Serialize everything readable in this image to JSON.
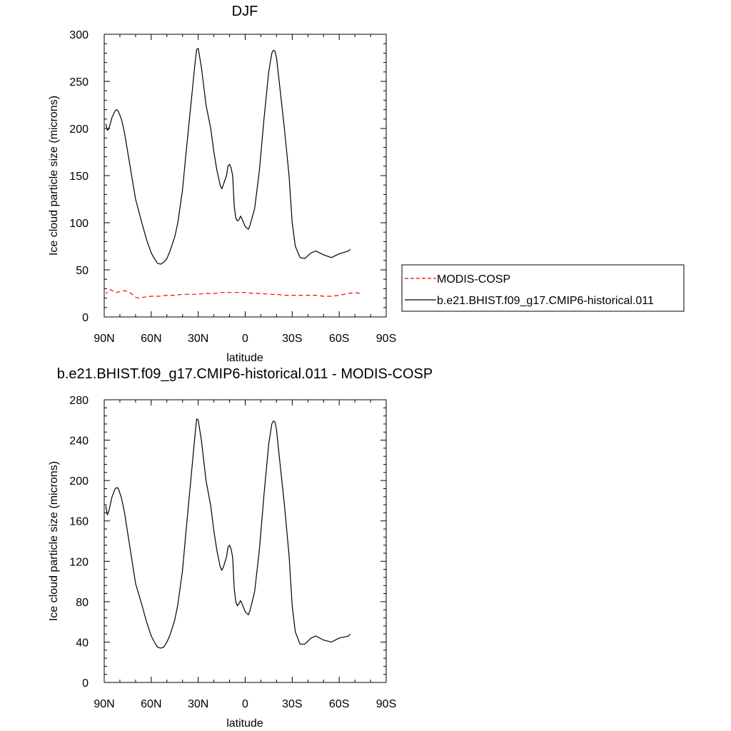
{
  "chart_data": [
    {
      "type": "line",
      "title": "DJF",
      "xlabel": "latitude",
      "ylabel": "Ice cloud particle size (microns)",
      "xlim": [
        90,
        -90
      ],
      "ylim": [
        0,
        300
      ],
      "x_ticks": [
        90,
        60,
        30,
        0,
        -30,
        -60,
        -90
      ],
      "x_tick_labels": [
        "90N",
        "60N",
        "30N",
        "0",
        "30S",
        "60S",
        "90S"
      ],
      "y_ticks": [
        0,
        50,
        100,
        150,
        200,
        250,
        300
      ],
      "y_tick_labels": [
        "0",
        "50",
        "100",
        "150",
        "200",
        "250",
        "300"
      ],
      "legend": {
        "position": "right",
        "entries": [
          "MODIS-COSP",
          "b.e21.BHIST.f09_g17.CMIP6-historical.011"
        ]
      },
      "series": [
        {
          "name": "MODIS-COSP",
          "color": "#ff0000",
          "style": "dashed",
          "points": [
            [
              -73,
              25
            ],
            [
              -70,
              26
            ],
            [
              -66,
              25
            ],
            [
              -60,
              23
            ],
            [
              -55,
              22
            ],
            [
              -50,
              22
            ],
            [
              -45,
              23
            ],
            [
              -40,
              23
            ],
            [
              -35,
              23
            ],
            [
              -30,
              23
            ],
            [
              -25,
              23
            ],
            [
              -20,
              24
            ],
            [
              -15,
              24
            ],
            [
              -10,
              25
            ],
            [
              -5,
              25
            ],
            [
              0,
              26
            ],
            [
              5,
              26
            ],
            [
              10,
              26
            ],
            [
              15,
              26
            ],
            [
              20,
              25
            ],
            [
              25,
              25
            ],
            [
              30,
              24
            ],
            [
              35,
              24
            ],
            [
              40,
              24
            ],
            [
              45,
              23
            ],
            [
              50,
              23
            ],
            [
              55,
              22
            ],
            [
              60,
              22
            ],
            [
              65,
              21
            ],
            [
              68,
              20
            ],
            [
              70,
              21
            ],
            [
              72,
              24
            ],
            [
              75,
              27
            ],
            [
              78,
              28
            ],
            [
              80,
              27
            ],
            [
              82,
              26
            ],
            [
              84,
              27
            ],
            [
              86,
              29
            ],
            [
              88,
              26
            ],
            [
              89,
              25
            ]
          ]
        },
        {
          "name": "b.e21.BHIST.f09_g17.CMIP6-historical.011",
          "color": "#000000",
          "style": "solid",
          "points": [
            [
              -67,
              72
            ],
            [
              -66,
              70
            ],
            [
              -60,
              67
            ],
            [
              -55,
              63
            ],
            [
              -50,
              66
            ],
            [
              -45,
              70
            ],
            [
              -42,
              68
            ],
            [
              -38,
              62
            ],
            [
              -35,
              63
            ],
            [
              -32,
              75
            ],
            [
              -30,
              100
            ],
            [
              -28,
              150
            ],
            [
              -25,
              200
            ],
            [
              -22,
              245
            ],
            [
              -20,
              275
            ],
            [
              -19,
              282
            ],
            [
              -18,
              283
            ],
            [
              -17,
              280
            ],
            [
              -15,
              260
            ],
            [
              -12,
              210
            ],
            [
              -9,
              155
            ],
            [
              -6,
              115
            ],
            [
              -3,
              97
            ],
            [
              -2,
              93
            ],
            [
              0,
              96
            ],
            [
              2,
              104
            ],
            [
              3,
              107
            ],
            [
              4,
              103
            ],
            [
              5,
              102
            ],
            [
              6,
              105
            ],
            [
              7,
              118
            ],
            [
              8,
              150
            ],
            [
              9,
              158
            ],
            [
              10,
              162
            ],
            [
              11,
              160
            ],
            [
              12,
              150
            ],
            [
              13,
              145
            ],
            [
              14,
              140
            ],
            [
              15,
              136
            ],
            [
              16,
              140
            ],
            [
              18,
              155
            ],
            [
              20,
              175
            ],
            [
              22,
              200
            ],
            [
              25,
              225
            ],
            [
              28,
              265
            ],
            [
              30,
              285
            ],
            [
              31,
              284
            ],
            [
              32,
              270
            ],
            [
              35,
              220
            ],
            [
              38,
              170
            ],
            [
              40,
              135
            ],
            [
              43,
              100
            ],
            [
              45,
              85
            ],
            [
              48,
              70
            ],
            [
              50,
              62
            ],
            [
              52,
              58
            ],
            [
              54,
              56
            ],
            [
              56,
              57
            ],
            [
              58,
              62
            ],
            [
              60,
              68
            ],
            [
              63,
              82
            ],
            [
              66,
              100
            ],
            [
              70,
              125
            ],
            [
              73,
              155
            ],
            [
              75,
              175
            ],
            [
              77,
              195
            ],
            [
              79,
              210
            ],
            [
              81,
              218
            ],
            [
              82,
              220
            ],
            [
              83,
              219
            ],
            [
              85,
              212
            ],
            [
              87,
              200
            ],
            [
              88,
              198
            ],
            [
              89,
              205
            ]
          ]
        }
      ]
    },
    {
      "type": "line",
      "title": "b.e21.BHIST.f09_g17.CMIP6-historical.011 - MODIS-COSP",
      "xlabel": "latitude",
      "ylabel": "Ice cloud particle size (microns)",
      "xlim": [
        90,
        -90
      ],
      "ylim": [
        0,
        280
      ],
      "x_ticks": [
        90,
        60,
        30,
        0,
        -30,
        -60,
        -90
      ],
      "x_tick_labels": [
        "90N",
        "60N",
        "30N",
        "0",
        "30S",
        "60S",
        "90S"
      ],
      "y_ticks": [
        0,
        40,
        80,
        120,
        160,
        200,
        240,
        280
      ],
      "y_tick_labels": [
        "0",
        "40",
        "80",
        "120",
        "160",
        "200",
        "240",
        "280"
      ],
      "series": [
        {
          "color": "#000000",
          "style": "solid",
          "points": [
            [
              -67,
              48
            ],
            [
              -66,
              46
            ],
            [
              -60,
              44
            ],
            [
              -55,
              40
            ],
            [
              -50,
              42
            ],
            [
              -45,
              46
            ],
            [
              -42,
              44
            ],
            [
              -38,
              38
            ],
            [
              -35,
              38
            ],
            [
              -32,
              50
            ],
            [
              -30,
              76
            ],
            [
              -28,
              126
            ],
            [
              -25,
              176
            ],
            [
              -22,
              220
            ],
            [
              -20,
              250
            ],
            [
              -19,
              258
            ],
            [
              -18,
              259
            ],
            [
              -17,
              256
            ],
            [
              -15,
              236
            ],
            [
              -12,
              186
            ],
            [
              -9,
              131
            ],
            [
              -6,
              90
            ],
            [
              -3,
              71
            ],
            [
              -2,
              67
            ],
            [
              0,
              70
            ],
            [
              2,
              78
            ],
            [
              3,
              81
            ],
            [
              4,
              78
            ],
            [
              5,
              76
            ],
            [
              6,
              80
            ],
            [
              7,
              93
            ],
            [
              8,
              124
            ],
            [
              9,
              132
            ],
            [
              10,
              136
            ],
            [
              11,
              134
            ],
            [
              12,
              124
            ],
            [
              13,
              119
            ],
            [
              14,
              114
            ],
            [
              15,
              111
            ],
            [
              16,
              115
            ],
            [
              18,
              130
            ],
            [
              20,
              150
            ],
            [
              22,
              175
            ],
            [
              25,
              200
            ],
            [
              28,
              240
            ],
            [
              30,
              260
            ],
            [
              31,
              261
            ],
            [
              32,
              246
            ],
            [
              35,
              196
            ],
            [
              38,
              146
            ],
            [
              40,
              111
            ],
            [
              43,
              77
            ],
            [
              45,
              62
            ],
            [
              48,
              47
            ],
            [
              50,
              40
            ],
            [
              52,
              35
            ],
            [
              54,
              34
            ],
            [
              56,
              35
            ],
            [
              58,
              40
            ],
            [
              60,
              46
            ],
            [
              63,
              60
            ],
            [
              66,
              77
            ],
            [
              70,
              98
            ],
            [
              73,
              128
            ],
            [
              75,
              148
            ],
            [
              77,
              168
            ],
            [
              79,
              183
            ],
            [
              81,
              192
            ],
            [
              82,
              193
            ],
            [
              83,
              192
            ],
            [
              85,
              184
            ],
            [
              87,
              170
            ],
            [
              88,
              166
            ],
            [
              89,
              175
            ]
          ]
        }
      ]
    }
  ]
}
